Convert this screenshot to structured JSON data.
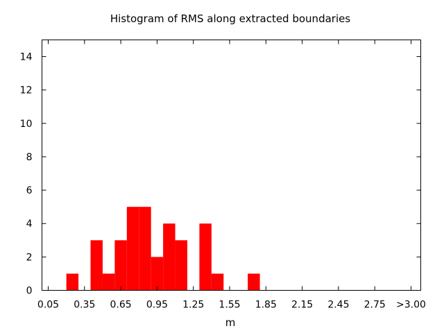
{
  "chart_data": {
    "type": "bar",
    "title": "Histogram of RMS along extracted boundaries",
    "xlabel": "m",
    "ylabel": "",
    "x_tick_labels": [
      "0.05",
      "0.35",
      "0.65",
      "0.95",
      "1.25",
      "1.55",
      "1.85",
      "2.15",
      "2.45",
      "2.75",
      ">3.00"
    ],
    "y_ticks": [
      0,
      2,
      4,
      6,
      8,
      10,
      12,
      14
    ],
    "ylim": [
      0,
      15
    ],
    "bin_width": 0.1,
    "categories": [
      "0.25",
      "0.45",
      "0.55",
      "0.65",
      "0.75",
      "0.85",
      "0.95",
      "1.05",
      "1.15",
      "1.35",
      "1.45",
      "1.75"
    ],
    "x": [
      0.25,
      0.45,
      0.55,
      0.65,
      0.75,
      0.85,
      0.95,
      1.05,
      1.15,
      1.35,
      1.45,
      1.75
    ],
    "values": [
      1,
      3,
      1,
      3,
      5,
      5,
      2,
      4,
      3,
      4,
      1,
      1
    ],
    "grid": false,
    "colors": {
      "bar": "#ff0000"
    }
  }
}
